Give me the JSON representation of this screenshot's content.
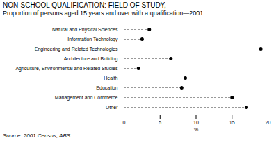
{
  "chart_data": {
    "type": "dot",
    "title": "NON-SCHOOL QUALIFICATION: FIELD OF STUDY,",
    "subtitle": "Proportion of persons aged 15 years and over with a qualification—2001",
    "source": "Source: 2001 Census, ABS",
    "categories": [
      "Natural and Physical Sciences",
      "Information Technology",
      "Engineering and Related Technologies",
      "Architecture and Building",
      "Agriculture, Environmental and Related Studies",
      "Health",
      "Education",
      "Management and Commerce",
      "Other"
    ],
    "values": [
      3.5,
      2.5,
      19.0,
      6.5,
      2.0,
      8.5,
      8.0,
      15.0,
      17.0
    ],
    "xlim": [
      0,
      20
    ],
    "xticks": [
      0,
      5,
      10,
      15,
      20
    ],
    "xlabel": "%",
    "color": "#000000",
    "line_style": "dashed",
    "grid": false
  }
}
